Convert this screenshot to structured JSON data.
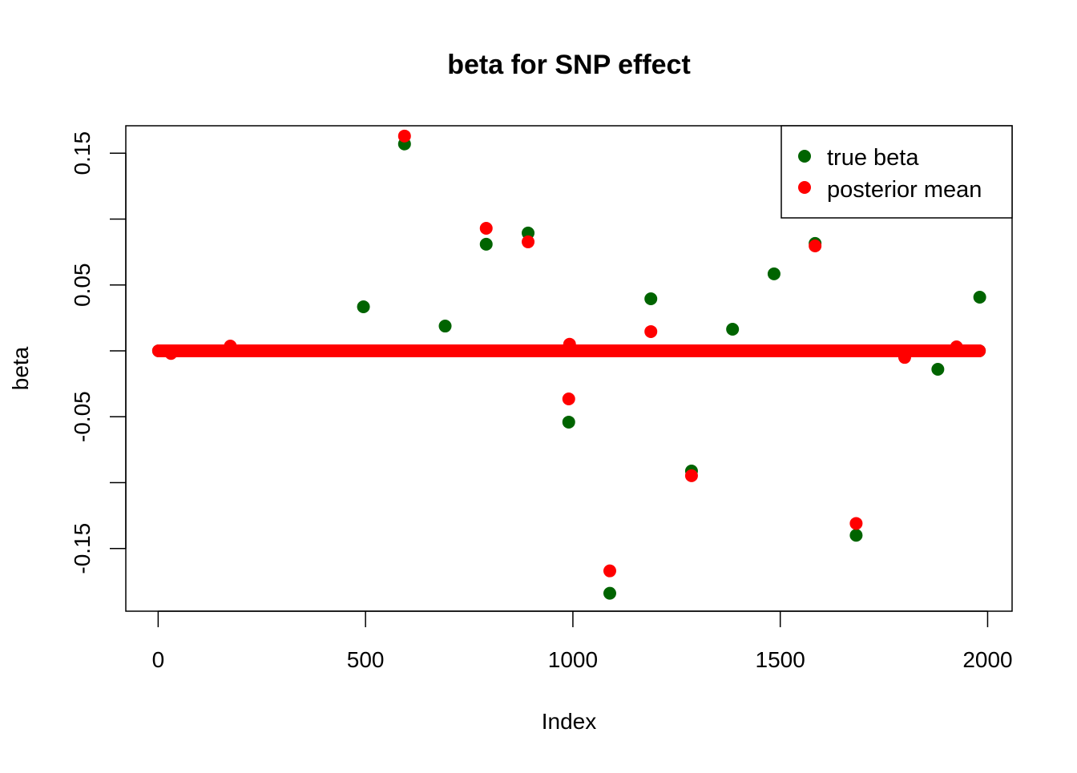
{
  "chart_data": {
    "type": "scatter",
    "title": "beta for SNP effect",
    "xlabel": "Index",
    "ylabel": "beta",
    "xlim": [
      -78,
      2059
    ],
    "ylim": [
      -0.1976,
      0.1708
    ],
    "xticks": [
      0,
      500,
      1000,
      1500,
      2000
    ],
    "xtick_labels": [
      "0",
      "500",
      "1000",
      "1500",
      "2000"
    ],
    "yticks": [
      0.15,
      0.1,
      0.05,
      0,
      -0.05,
      -0.1,
      -0.15
    ],
    "ytick_labels": [
      "0.15",
      "",
      "0.05",
      "",
      "-0.05",
      "",
      "-0.15"
    ],
    "grid": false,
    "legend_position": "top-right",
    "n": 1980,
    "default_value": 0,
    "series": [
      {
        "name": "true beta",
        "color": "#006400",
        "points": [
          {
            "x": 495,
            "y": 0.0334
          },
          {
            "x": 594,
            "y": 0.157
          },
          {
            "x": 692,
            "y": 0.0188
          },
          {
            "x": 791,
            "y": 0.0809
          },
          {
            "x": 892,
            "y": 0.0894
          },
          {
            "x": 990,
            "y": -0.0541
          },
          {
            "x": 1089,
            "y": -0.184
          },
          {
            "x": 1188,
            "y": 0.0395
          },
          {
            "x": 1286,
            "y": -0.0912
          },
          {
            "x": 1385,
            "y": 0.0164
          },
          {
            "x": 1485,
            "y": 0.0584
          },
          {
            "x": 1584,
            "y": 0.0815
          },
          {
            "x": 1683,
            "y": -0.14
          },
          {
            "x": 1880,
            "y": -0.014
          },
          {
            "x": 1981,
            "y": 0.0407
          }
        ]
      },
      {
        "name": "posterior mean",
        "color": "#FF0000",
        "points": [
          {
            "x": 31,
            "y": -0.002
          },
          {
            "x": 174,
            "y": 0.0036
          },
          {
            "x": 594,
            "y": 0.163
          },
          {
            "x": 791,
            "y": 0.093
          },
          {
            "x": 892,
            "y": 0.0827
          },
          {
            "x": 990,
            "y": -0.0365
          },
          {
            "x": 992,
            "y": 0.005
          },
          {
            "x": 1089,
            "y": -0.167
          },
          {
            "x": 1188,
            "y": 0.0146
          },
          {
            "x": 1286,
            "y": -0.0948
          },
          {
            "x": 1584,
            "y": 0.0796
          },
          {
            "x": 1683,
            "y": -0.131
          },
          {
            "x": 1800,
            "y": -0.005
          },
          {
            "x": 1925,
            "y": 0.003
          }
        ]
      }
    ]
  }
}
